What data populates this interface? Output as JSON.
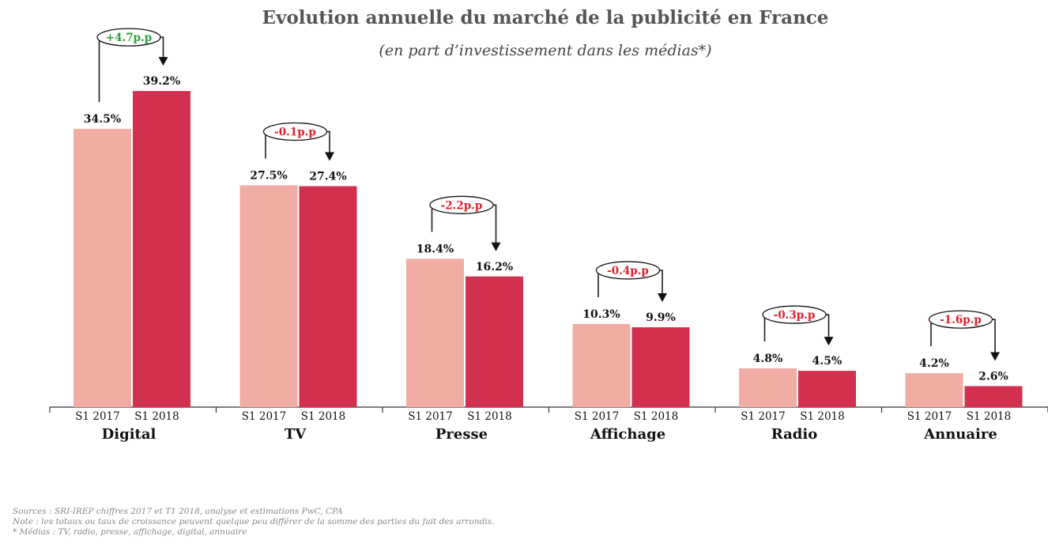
{
  "chart_data": {
    "type": "bar",
    "title": "Evolution annuelle du marché de la publicité en France",
    "subtitle": "(en part d’investissement dans les médias*)",
    "categories": [
      "Digital",
      "TV",
      "Presse",
      "Affichage",
      "Radio",
      "Annuaire"
    ],
    "series": [
      {
        "name": "S1 2017",
        "values": [
          34.5,
          27.5,
          18.4,
          10.3,
          4.8,
          4.2
        ],
        "labels": [
          "34.5%",
          "27.5%",
          "18.4%",
          "10.3%",
          "4.8%",
          "4.2%"
        ]
      },
      {
        "name": "S1 2018",
        "values": [
          39.2,
          27.4,
          16.2,
          9.9,
          4.5,
          2.6
        ],
        "labels": [
          "39.2%",
          "27.4%",
          "16.2%",
          "9.9%",
          "4.5%",
          "2.6%"
        ]
      }
    ],
    "deltas": [
      "+4.7p.p",
      "-0.1p.p",
      "-2.2p.p",
      "-0.4p.p",
      "-0.3p.p",
      "-1.6p.p"
    ],
    "ylim": [
      0,
      40
    ],
    "grid": false,
    "legend": "none",
    "colors": {
      "s1_2017": "#f1aca4",
      "s1_2018": "#d2304f",
      "delta_positive": "#2e9e3e",
      "delta_negative": "#e0202a",
      "axis": "#333333"
    }
  },
  "footnotes": {
    "sources": "Sources : SRI-IREP chiffres 2017 et T1 2018, analyse et estimations PwC, CPA",
    "note": "Note : les totaux ou taux de croissance peuvent quelque peu différer de la somme des parties du fait des arrondis.",
    "medias": "* Médias : TV, radio, presse, affichage, digital, annuaire"
  }
}
